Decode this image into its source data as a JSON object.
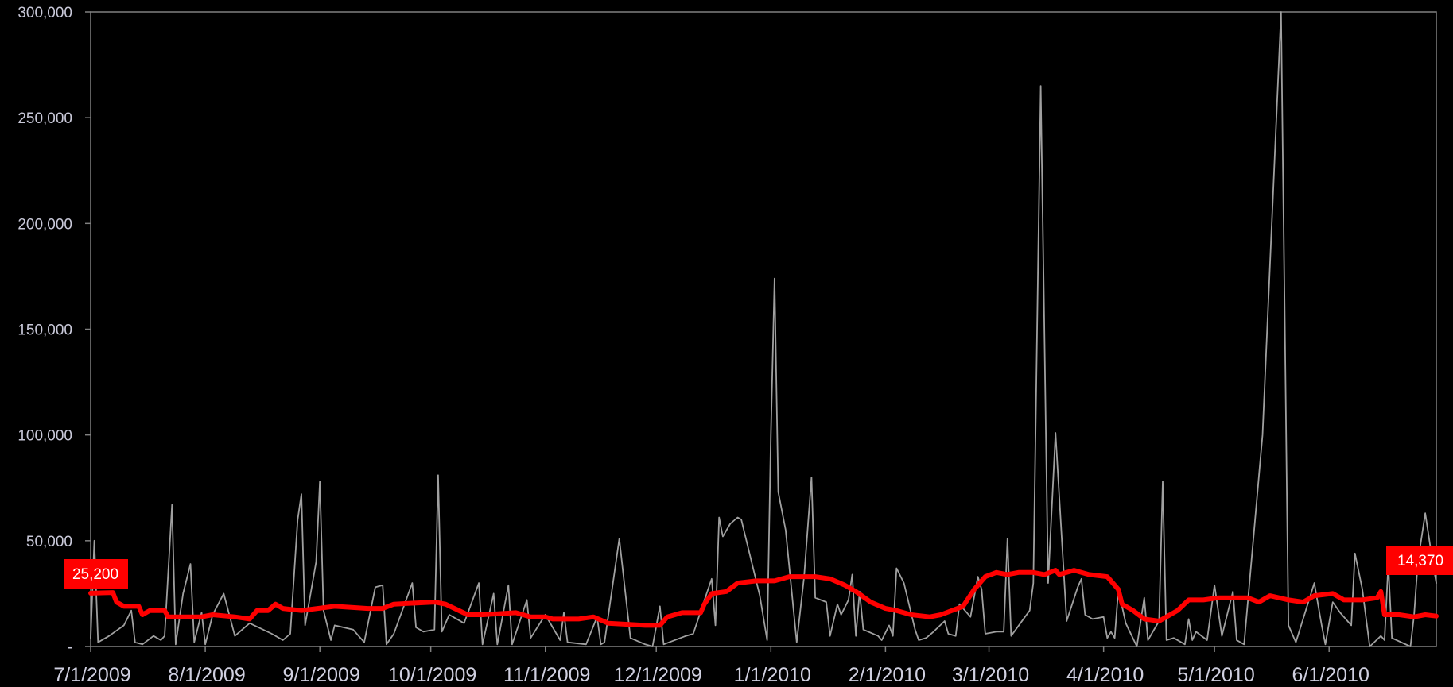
{
  "chart_data": {
    "type": "line",
    "title": "",
    "xlabel": "",
    "ylabel": "",
    "ylim": [
      0,
      300000
    ],
    "y_ticks": [
      "-",
      "50,000",
      "100,000",
      "150,000",
      "200,000",
      "250,000",
      "300,000"
    ],
    "y_tick_values": [
      0,
      50000,
      100000,
      150000,
      200000,
      250000,
      300000
    ],
    "x_ticks": [
      "7/1/2009",
      "8/1/2009",
      "9/1/2009",
      "10/1/2009",
      "11/1/2009",
      "12/1/2009",
      "1/1/2010",
      "2/1/2010",
      "3/1/2010",
      "4/1/2010",
      "5/1/2010",
      "6/1/2010"
    ],
    "x_range": [
      "2009-07-01",
      "2010-06-30"
    ],
    "grid": false,
    "background": "#000000",
    "colors": {
      "daily": "#a0a0a0",
      "trend": "#ff0000",
      "axis": "#808080"
    },
    "series": [
      {
        "style": "thin-gray",
        "points": [
          [
            "2009-07-01",
            4000
          ],
          [
            "2009-07-02",
            50000
          ],
          [
            "2009-07-03",
            2000
          ],
          [
            "2009-07-06",
            5000
          ],
          [
            "2009-07-10",
            10000
          ],
          [
            "2009-07-12",
            17000
          ],
          [
            "2009-07-13",
            2000
          ],
          [
            "2009-07-15",
            1000
          ],
          [
            "2009-07-18",
            5000
          ],
          [
            "2009-07-20",
            3000
          ],
          [
            "2009-07-21",
            5000
          ],
          [
            "2009-07-23",
            67000
          ],
          [
            "2009-07-24",
            1000
          ],
          [
            "2009-07-26",
            25000
          ],
          [
            "2009-07-28",
            39000
          ],
          [
            "2009-07-29",
            2000
          ],
          [
            "2009-07-31",
            16000
          ],
          [
            "2009-08-01",
            1000
          ],
          [
            "2009-08-03",
            15000
          ],
          [
            "2009-08-06",
            25000
          ],
          [
            "2009-08-09",
            5000
          ],
          [
            "2009-08-13",
            11000
          ],
          [
            "2009-08-19",
            6000
          ],
          [
            "2009-08-22",
            3000
          ],
          [
            "2009-08-24",
            6000
          ],
          [
            "2009-08-26",
            60000
          ],
          [
            "2009-08-27",
            72000
          ],
          [
            "2009-08-28",
            10000
          ],
          [
            "2009-08-31",
            40000
          ],
          [
            "2009-09-01",
            78000
          ],
          [
            "2009-09-02",
            17000
          ],
          [
            "2009-09-04",
            3000
          ],
          [
            "2009-09-05",
            10000
          ],
          [
            "2009-09-10",
            8000
          ],
          [
            "2009-09-13",
            2000
          ],
          [
            "2009-09-16",
            28000
          ],
          [
            "2009-09-18",
            29000
          ],
          [
            "2009-09-19",
            1000
          ],
          [
            "2009-09-21",
            6000
          ],
          [
            "2009-09-26",
            30000
          ],
          [
            "2009-09-27",
            9000
          ],
          [
            "2009-09-29",
            7000
          ],
          [
            "2009-10-02",
            8000
          ],
          [
            "2009-10-03",
            81000
          ],
          [
            "2009-10-04",
            7000
          ],
          [
            "2009-10-06",
            15000
          ],
          [
            "2009-10-10",
            11000
          ],
          [
            "2009-10-14",
            30000
          ],
          [
            "2009-10-15",
            1000
          ],
          [
            "2009-10-18",
            25000
          ],
          [
            "2009-10-19",
            1000
          ],
          [
            "2009-10-22",
            29000
          ],
          [
            "2009-10-23",
            1000
          ],
          [
            "2009-10-27",
            22000
          ],
          [
            "2009-10-28",
            4000
          ],
          [
            "2009-11-01",
            15000
          ],
          [
            "2009-11-05",
            3000
          ],
          [
            "2009-11-06",
            16000
          ],
          [
            "2009-11-07",
            2000
          ],
          [
            "2009-11-12",
            1000
          ],
          [
            "2009-11-15",
            14000
          ],
          [
            "2009-11-16",
            1000
          ],
          [
            "2009-11-17",
            2000
          ],
          [
            "2009-11-21",
            51000
          ],
          [
            "2009-11-24",
            4000
          ],
          [
            "2009-11-28",
            1000
          ],
          [
            "2009-11-30",
            0
          ],
          [
            "2009-12-02",
            19000
          ],
          [
            "2009-12-03",
            1000
          ],
          [
            "2009-12-09",
            5000
          ],
          [
            "2009-12-11",
            6000
          ],
          [
            "2009-12-15",
            27000
          ],
          [
            "2009-12-16",
            32000
          ],
          [
            "2009-12-17",
            10000
          ],
          [
            "2009-12-18",
            61000
          ],
          [
            "2009-12-19",
            52000
          ],
          [
            "2009-12-21",
            58000
          ],
          [
            "2009-12-23",
            61000
          ],
          [
            "2009-12-24",
            60000
          ],
          [
            "2009-12-29",
            24000
          ],
          [
            "2009-12-31",
            3000
          ],
          [
            "2010-01-01",
            100000
          ],
          [
            "2010-01-02",
            174000
          ],
          [
            "2010-01-03",
            73000
          ],
          [
            "2010-01-05",
            55000
          ],
          [
            "2010-01-08",
            2000
          ],
          [
            "2010-01-10",
            33000
          ],
          [
            "2010-01-12",
            80000
          ],
          [
            "2010-01-13",
            23000
          ],
          [
            "2010-01-16",
            21000
          ],
          [
            "2010-01-17",
            5000
          ],
          [
            "2010-01-19",
            20000
          ],
          [
            "2010-01-20",
            15000
          ],
          [
            "2010-01-22",
            22000
          ],
          [
            "2010-01-23",
            34000
          ],
          [
            "2010-01-24",
            5000
          ],
          [
            "2010-01-25",
            26000
          ],
          [
            "2010-01-26",
            8000
          ],
          [
            "2010-01-30",
            5000
          ],
          [
            "2010-01-31",
            3000
          ],
          [
            "2010-02-02",
            10000
          ],
          [
            "2010-02-03",
            5000
          ],
          [
            "2010-02-04",
            37000
          ],
          [
            "2010-02-06",
            30000
          ],
          [
            "2010-02-09",
            8000
          ],
          [
            "2010-02-10",
            3000
          ],
          [
            "2010-02-12",
            4000
          ],
          [
            "2010-02-14",
            7000
          ],
          [
            "2010-02-17",
            12000
          ],
          [
            "2010-02-18",
            6000
          ],
          [
            "2010-02-20",
            5000
          ],
          [
            "2010-02-21",
            20000
          ],
          [
            "2010-02-24",
            14000
          ],
          [
            "2010-02-26",
            33000
          ],
          [
            "2010-02-27",
            27000
          ],
          [
            "2010-02-28",
            6000
          ],
          [
            "2010-03-03",
            7000
          ],
          [
            "2010-03-05",
            7000
          ],
          [
            "2010-03-06",
            51000
          ],
          [
            "2010-03-07",
            5000
          ],
          [
            "2010-03-12",
            17000
          ],
          [
            "2010-03-13",
            30000
          ],
          [
            "2010-03-15",
            265000
          ],
          [
            "2010-03-17",
            30000
          ],
          [
            "2010-03-19",
            101000
          ],
          [
            "2010-03-22",
            12000
          ],
          [
            "2010-03-25",
            28000
          ],
          [
            "2010-03-26",
            32000
          ],
          [
            "2010-03-27",
            15000
          ],
          [
            "2010-03-29",
            13000
          ],
          [
            "2010-04-01",
            14000
          ],
          [
            "2010-04-02",
            4000
          ],
          [
            "2010-04-03",
            7000
          ],
          [
            "2010-04-04",
            4000
          ],
          [
            "2010-04-05",
            27000
          ],
          [
            "2010-04-07",
            11000
          ],
          [
            "2010-04-10",
            0
          ],
          [
            "2010-04-12",
            23000
          ],
          [
            "2010-04-13",
            3000
          ],
          [
            "2010-04-16",
            12000
          ],
          [
            "2010-04-17",
            78000
          ],
          [
            "2010-04-18",
            3000
          ],
          [
            "2010-04-20",
            4000
          ],
          [
            "2010-04-23",
            1000
          ],
          [
            "2010-04-24",
            13000
          ],
          [
            "2010-04-25",
            3000
          ],
          [
            "2010-04-26",
            7000
          ],
          [
            "2010-04-29",
            3000
          ],
          [
            "2010-05-01",
            29000
          ],
          [
            "2010-05-03",
            5000
          ],
          [
            "2010-05-06",
            26000
          ],
          [
            "2010-05-07",
            3000
          ],
          [
            "2010-05-09",
            1000
          ],
          [
            "2010-05-14",
            100000
          ],
          [
            "2010-05-19",
            300000
          ],
          [
            "2010-05-21",
            10000
          ],
          [
            "2010-05-23",
            2000
          ],
          [
            "2010-05-28",
            30000
          ],
          [
            "2010-05-30",
            10000
          ],
          [
            "2010-05-31",
            1000
          ],
          [
            "2010-06-02",
            21000
          ],
          [
            "2010-06-04",
            16000
          ],
          [
            "2010-06-07",
            10000
          ],
          [
            "2010-06-08",
            44000
          ],
          [
            "2010-06-10",
            27000
          ],
          [
            "2010-06-12",
            0
          ],
          [
            "2010-06-15",
            5000
          ],
          [
            "2010-06-16",
            3000
          ],
          [
            "2010-06-17",
            39000
          ],
          [
            "2010-06-18",
            4000
          ],
          [
            "2010-06-23",
            0
          ],
          [
            "2010-06-24",
            15000
          ],
          [
            "2010-06-25",
            40000
          ],
          [
            "2010-06-27",
            63000
          ],
          [
            "2010-06-29",
            40000
          ],
          [
            "2010-06-30",
            30000
          ]
        ]
      },
      {
        "style": "thick-red",
        "points": [
          [
            "2009-07-01",
            25200
          ],
          [
            "2009-07-07",
            25500
          ],
          [
            "2009-07-08",
            21000
          ],
          [
            "2009-07-10",
            19000
          ],
          [
            "2009-07-14",
            19000
          ],
          [
            "2009-07-15",
            15000
          ],
          [
            "2009-07-17",
            17000
          ],
          [
            "2009-07-21",
            17000
          ],
          [
            "2009-07-22",
            14000
          ],
          [
            "2009-07-31",
            14000
          ],
          [
            "2009-08-03",
            15000
          ],
          [
            "2009-08-09",
            14000
          ],
          [
            "2009-08-13",
            13000
          ],
          [
            "2009-08-15",
            17000
          ],
          [
            "2009-08-18",
            17000
          ],
          [
            "2009-08-20",
            20000
          ],
          [
            "2009-08-22",
            18000
          ],
          [
            "2009-08-27",
            17000
          ],
          [
            "2009-09-05",
            19000
          ],
          [
            "2009-09-14",
            18000
          ],
          [
            "2009-09-18",
            18000
          ],
          [
            "2009-09-21",
            20000
          ],
          [
            "2009-10-02",
            21000
          ],
          [
            "2009-10-05",
            20000
          ],
          [
            "2009-10-11",
            15000
          ],
          [
            "2009-10-15",
            15000
          ],
          [
            "2009-10-24",
            16000
          ],
          [
            "2009-10-28",
            14000
          ],
          [
            "2009-11-01",
            14000
          ],
          [
            "2009-11-03",
            13000
          ],
          [
            "2009-11-10",
            13000
          ],
          [
            "2009-11-14",
            14000
          ],
          [
            "2009-11-18",
            11000
          ],
          [
            "2009-11-28",
            10000
          ],
          [
            "2009-12-02",
            10000
          ],
          [
            "2009-12-04",
            14000
          ],
          [
            "2009-12-08",
            16000
          ],
          [
            "2009-12-13",
            16000
          ],
          [
            "2009-12-14",
            20000
          ],
          [
            "2009-12-16",
            25000
          ],
          [
            "2009-12-20",
            26000
          ],
          [
            "2009-12-23",
            30000
          ],
          [
            "2009-12-28",
            31000
          ],
          [
            "2010-01-02",
            31000
          ],
          [
            "2010-01-06",
            33000
          ],
          [
            "2010-01-13",
            33000
          ],
          [
            "2010-01-17",
            32000
          ],
          [
            "2010-01-21",
            29000
          ],
          [
            "2010-01-24",
            26000
          ],
          [
            "2010-01-28",
            21000
          ],
          [
            "2010-02-01",
            18000
          ],
          [
            "2010-02-04",
            17000
          ],
          [
            "2010-02-08",
            15000
          ],
          [
            "2010-02-13",
            14000
          ],
          [
            "2010-02-16",
            15000
          ],
          [
            "2010-02-22",
            19000
          ],
          [
            "2010-02-25",
            27000
          ],
          [
            "2010-02-28",
            33000
          ],
          [
            "2010-03-03",
            35000
          ],
          [
            "2010-03-06",
            34000
          ],
          [
            "2010-03-09",
            35000
          ],
          [
            "2010-03-13",
            35000
          ],
          [
            "2010-03-16",
            34000
          ],
          [
            "2010-03-19",
            36000
          ],
          [
            "2010-03-20",
            34000
          ],
          [
            "2010-03-24",
            36000
          ],
          [
            "2010-03-28",
            34000
          ],
          [
            "2010-04-02",
            33000
          ],
          [
            "2010-04-05",
            27000
          ],
          [
            "2010-04-06",
            20000
          ],
          [
            "2010-04-09",
            17000
          ],
          [
            "2010-04-12",
            13000
          ],
          [
            "2010-04-16",
            12000
          ],
          [
            "2010-04-21",
            17000
          ],
          [
            "2010-04-24",
            22000
          ],
          [
            "2010-04-28",
            22000
          ],
          [
            "2010-05-02",
            23000
          ],
          [
            "2010-05-06",
            23000
          ],
          [
            "2010-05-10",
            23000
          ],
          [
            "2010-05-13",
            21000
          ],
          [
            "2010-05-16",
            24000
          ],
          [
            "2010-05-21",
            22000
          ],
          [
            "2010-05-25",
            21000
          ],
          [
            "2010-05-28",
            24000
          ],
          [
            "2010-06-02",
            25000
          ],
          [
            "2010-06-05",
            22000
          ],
          [
            "2010-06-10",
            22000
          ],
          [
            "2010-06-14",
            23000
          ],
          [
            "2010-06-15",
            26000
          ],
          [
            "2010-06-16",
            15000
          ],
          [
            "2010-06-20",
            15000
          ],
          [
            "2010-06-24",
            14000
          ],
          [
            "2010-06-27",
            15000
          ],
          [
            "2010-06-30",
            14370
          ]
        ]
      }
    ],
    "annotations": [
      {
        "text": "25,200",
        "at": "start",
        "color": "#ff0000"
      },
      {
        "text": "14,370",
        "at": "end",
        "color": "#ff0000"
      }
    ]
  }
}
